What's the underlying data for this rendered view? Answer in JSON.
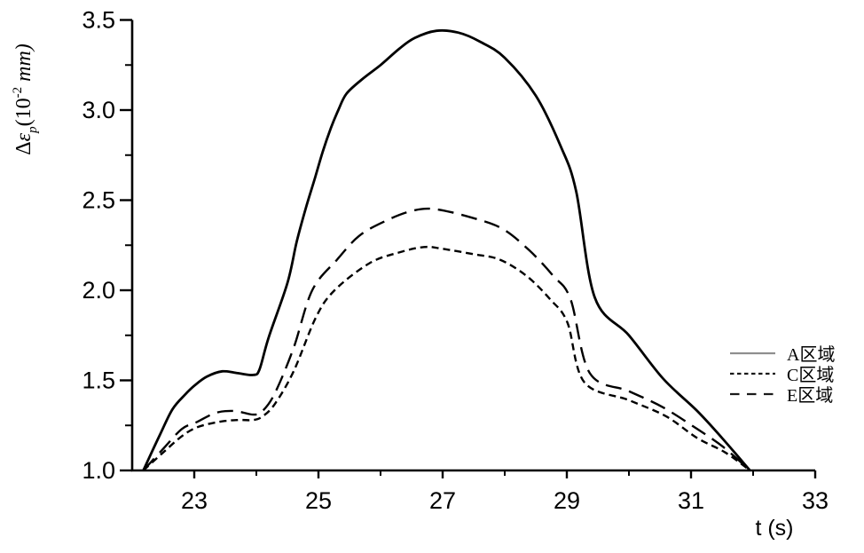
{
  "figure": {
    "background": "#ffffff",
    "ink_color": "#000000"
  },
  "chart_data": {
    "type": "line",
    "title": "",
    "xlabel": "t (s)",
    "ylabel": "Δεp(10⁻² mm)",
    "ylabel_parts": [
      {
        "text": "Δ",
        "italic": false,
        "pos": "normal"
      },
      {
        "text": "ε",
        "italic": true,
        "pos": "normal"
      },
      {
        "text": "p",
        "italic": true,
        "pos": "sub"
      },
      {
        "text": "(10",
        "italic": false,
        "pos": "normal"
      },
      {
        "text": "-2",
        "italic": false,
        "pos": "sup"
      },
      {
        "text": " mm)",
        "italic": true,
        "pos": "normal"
      }
    ],
    "xlim": [
      22,
      33
    ],
    "ylim": [
      1.0,
      3.5
    ],
    "x_major_ticks": [
      23,
      25,
      27,
      29,
      31,
      33
    ],
    "x_minor_ticks": [
      24,
      26,
      28,
      30,
      32
    ],
    "x_tick_labels": [
      "23",
      "25",
      "27",
      "29",
      "31",
      "33"
    ],
    "y_major_ticks": [
      1.0,
      1.5,
      2.0,
      2.5,
      3.0,
      3.5
    ],
    "y_minor_ticks": [
      1.25,
      1.75,
      2.25,
      2.75,
      3.25
    ],
    "y_tick_labels": [
      "1.0",
      "1.5",
      "2.0",
      "2.5",
      "3.0",
      "3.5"
    ],
    "grid": false,
    "legend": {
      "position": "right-middle",
      "items": [
        {
          "label": "A区域",
          "line_style": "solid",
          "sample_color": "#8f8f8f"
        },
        {
          "label": "C区域",
          "line_style": "short-dash",
          "sample_color": "#1a1a1a"
        },
        {
          "label": "E区域",
          "line_style": "long-dash",
          "sample_color": "#1a1a1a"
        }
      ]
    },
    "series": [
      {
        "name": "A区域",
        "line_style": "solid",
        "color": "#000000",
        "points": [
          [
            22.18,
            1.0
          ],
          [
            22.45,
            1.2
          ],
          [
            22.65,
            1.34
          ],
          [
            22.85,
            1.42
          ],
          [
            23.0,
            1.47
          ],
          [
            23.2,
            1.52
          ],
          [
            23.45,
            1.55
          ],
          [
            23.7,
            1.54
          ],
          [
            23.95,
            1.53
          ],
          [
            24.05,
            1.56
          ],
          [
            24.2,
            1.74
          ],
          [
            24.5,
            2.04
          ],
          [
            24.65,
            2.27
          ],
          [
            24.8,
            2.46
          ],
          [
            24.95,
            2.63
          ],
          [
            25.07,
            2.77
          ],
          [
            25.2,
            2.9
          ],
          [
            25.32,
            3.0
          ],
          [
            25.45,
            3.09
          ],
          [
            25.7,
            3.17
          ],
          [
            26.0,
            3.25
          ],
          [
            26.3,
            3.34
          ],
          [
            26.55,
            3.4
          ],
          [
            26.9,
            3.44
          ],
          [
            27.25,
            3.43
          ],
          [
            27.6,
            3.38
          ],
          [
            28.0,
            3.29
          ],
          [
            28.5,
            3.08
          ],
          [
            28.9,
            2.8
          ],
          [
            29.15,
            2.55
          ],
          [
            29.45,
            1.96
          ],
          [
            30.0,
            1.75
          ],
          [
            30.55,
            1.51
          ],
          [
            31.1,
            1.33
          ],
          [
            31.5,
            1.18
          ],
          [
            31.95,
            1.0
          ]
        ]
      },
      {
        "name": "C区域",
        "line_style": "short-dash",
        "color": "#000000",
        "points": [
          [
            22.18,
            1.0
          ],
          [
            22.5,
            1.1
          ],
          [
            22.8,
            1.19
          ],
          [
            23.05,
            1.24
          ],
          [
            23.4,
            1.27
          ],
          [
            23.7,
            1.28
          ],
          [
            23.95,
            1.28
          ],
          [
            24.1,
            1.3
          ],
          [
            24.3,
            1.37
          ],
          [
            24.6,
            1.55
          ],
          [
            24.96,
            1.85
          ],
          [
            25.26,
            2.0
          ],
          [
            25.82,
            2.15
          ],
          [
            26.3,
            2.21
          ],
          [
            26.7,
            2.24
          ],
          [
            27.0,
            2.23
          ],
          [
            27.5,
            2.2
          ],
          [
            27.92,
            2.17
          ],
          [
            28.35,
            2.08
          ],
          [
            28.73,
            1.95
          ],
          [
            29.01,
            1.82
          ],
          [
            29.28,
            1.49
          ],
          [
            30.0,
            1.39
          ],
          [
            30.6,
            1.3
          ],
          [
            31.1,
            1.18
          ],
          [
            31.55,
            1.1
          ],
          [
            31.95,
            1.0
          ]
        ]
      },
      {
        "name": "E区域",
        "line_style": "long-dash",
        "color": "#000000",
        "points": [
          [
            22.18,
            1.0
          ],
          [
            22.5,
            1.12
          ],
          [
            22.8,
            1.23
          ],
          [
            23.05,
            1.27
          ],
          [
            23.35,
            1.32
          ],
          [
            23.65,
            1.33
          ],
          [
            23.95,
            1.31
          ],
          [
            24.1,
            1.33
          ],
          [
            24.3,
            1.43
          ],
          [
            24.6,
            1.68
          ],
          [
            24.9,
            2.0
          ],
          [
            25.3,
            2.17
          ],
          [
            25.65,
            2.3
          ],
          [
            26.05,
            2.38
          ],
          [
            26.5,
            2.44
          ],
          [
            26.88,
            2.45
          ],
          [
            27.5,
            2.4
          ],
          [
            27.97,
            2.34
          ],
          [
            28.4,
            2.22
          ],
          [
            28.78,
            2.08
          ],
          [
            29.06,
            1.95
          ],
          [
            29.37,
            1.54
          ],
          [
            30.0,
            1.44
          ],
          [
            30.55,
            1.35
          ],
          [
            31.1,
            1.23
          ],
          [
            31.52,
            1.13
          ],
          [
            31.95,
            1.0
          ]
        ]
      }
    ]
  }
}
